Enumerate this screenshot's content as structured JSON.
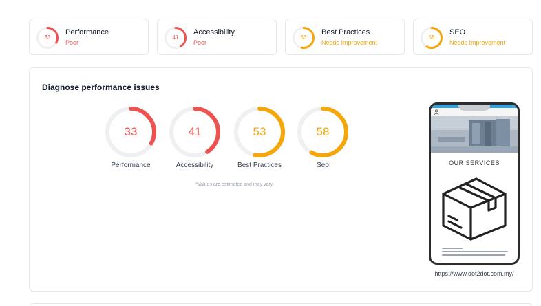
{
  "summary": [
    {
      "score": "33",
      "score_value": 33,
      "title": "Performance",
      "status": "Poor",
      "color": "#ef5350"
    },
    {
      "score": "41",
      "score_value": 41,
      "title": "Accessibility",
      "status": "Poor",
      "color": "#ef5350"
    },
    {
      "score": "53",
      "score_value": 53,
      "title": "Best Practices",
      "status": "Needs Improvement",
      "color": "#f4a60a"
    },
    {
      "score": "58",
      "score_value": 58,
      "title": "SEO",
      "status": "Needs Improvement",
      "color": "#f4a60a"
    }
  ],
  "diagnose": {
    "title": "Diagnose performance issues",
    "gauges": [
      {
        "score": "33",
        "score_value": 33,
        "label": "Performance",
        "color": "#ef5350"
      },
      {
        "score": "41",
        "score_value": 41,
        "label": "Accessibility",
        "color": "#ef5350"
      },
      {
        "score": "53",
        "score_value": 53,
        "label": "Best Practices",
        "color": "#f4a60a"
      },
      {
        "score": "58",
        "score_value": 58,
        "label": "Seo",
        "color": "#f4a60a"
      }
    ],
    "disclaimer": "*Values are estimated and may vary."
  },
  "preview": {
    "services_title": "OUR SERVICES",
    "url": "https://www.dot2dot.com.my/",
    "icons": [
      "user-icon",
      "box-icon"
    ]
  },
  "colors": {
    "poor": "#ef5350",
    "needs_improvement": "#f4a60a",
    "track": "#eef0f1",
    "border": "#e5e7eb"
  }
}
